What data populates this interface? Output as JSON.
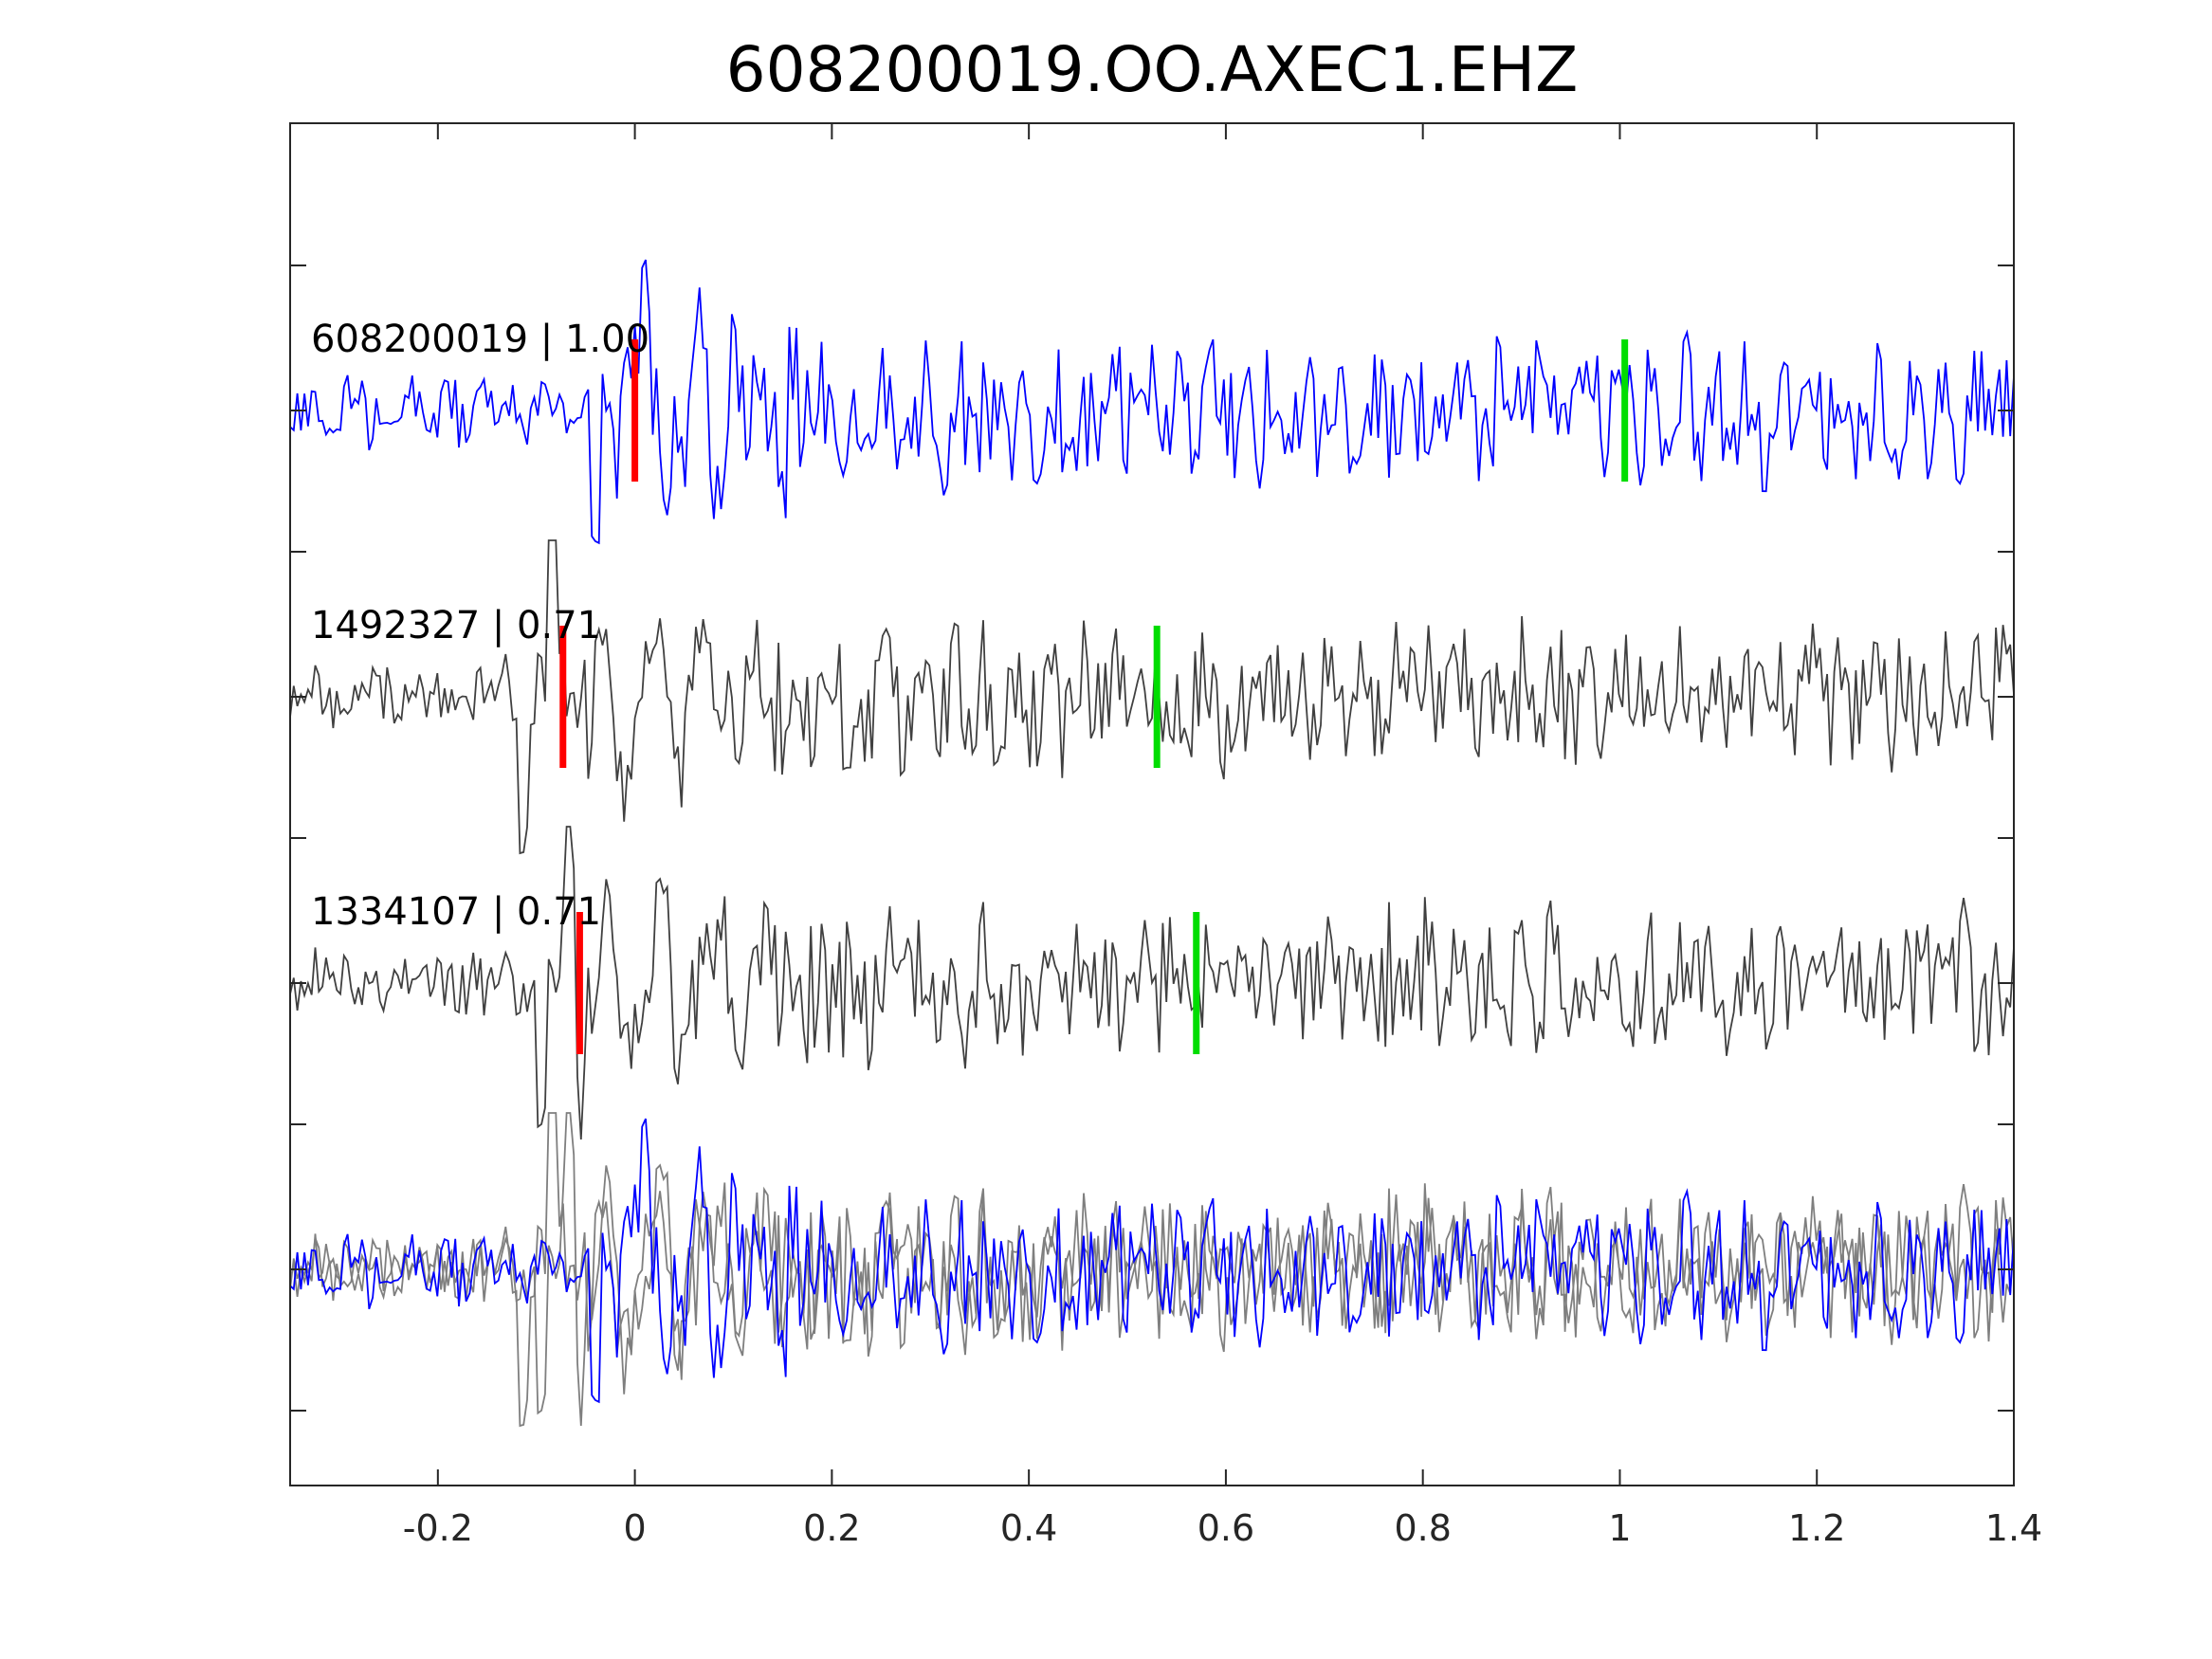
{
  "chart_data": {
    "type": "line",
    "title": "608200019.OO.AXEC1.EHZ",
    "xlabel": "",
    "ylabel": "",
    "xlim": [
      -0.35,
      1.4
    ],
    "x_ticks": [
      -0.2,
      0,
      0.2,
      0.4,
      0.6,
      0.8,
      1,
      1.2,
      1.4
    ],
    "x_tick_labels": [
      "-0.2",
      "0",
      "0.2",
      "0.4",
      "0.6",
      "0.8",
      "1",
      "1.2",
      "1.4"
    ],
    "grid": false,
    "colors": {
      "reference_trace": "#0000ff",
      "correlated_trace": "#404040",
      "overlay_correlated_trace": "#7f7f7f",
      "p_pick": "#ff0000",
      "s_pick": "#00dd00",
      "axes": "#262626"
    },
    "traces": [
      {
        "label": "608200019 | 1.00",
        "event_id": "608200019",
        "correlation": 1.0,
        "p_pick": 0.0,
        "s_pick": 1.005,
        "color": "#0000ff"
      },
      {
        "label": "1492327 | 0.71",
        "event_id": "1492327",
        "correlation": 0.71,
        "p_pick": -0.073,
        "s_pick": 0.53,
        "color": "#404040"
      },
      {
        "label": "1334107 | 0.71",
        "event_id": "1334107",
        "correlation": 0.71,
        "p_pick": -0.056,
        "s_pick": 0.57,
        "color": "#404040"
      }
    ],
    "overlay": {
      "description_of_content": "all traces aligned and superimposed",
      "position": "bottom"
    }
  }
}
